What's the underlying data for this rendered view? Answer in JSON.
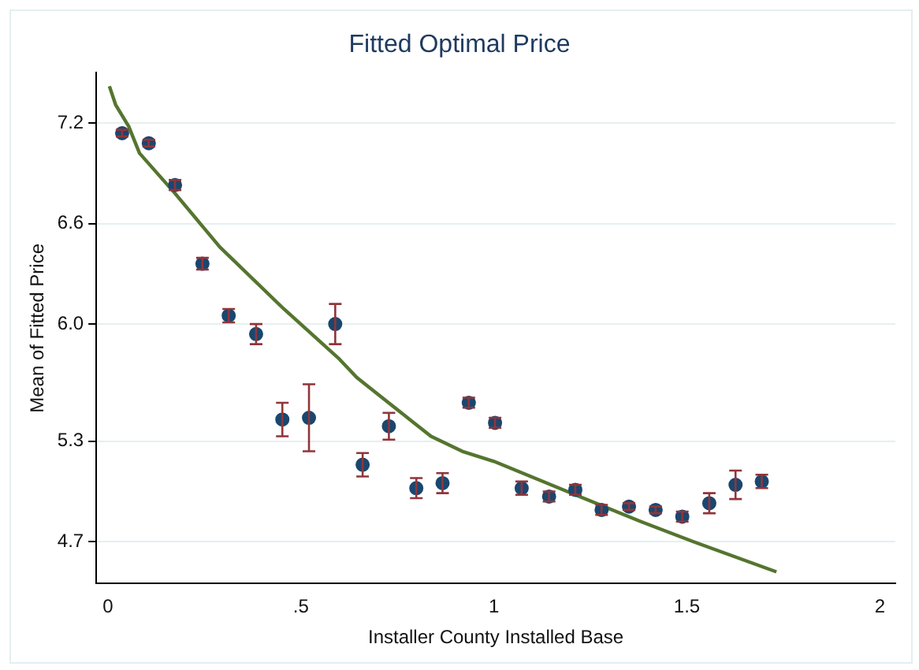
{
  "chart_data": {
    "type": "scatter",
    "title": "Fitted Optimal Price",
    "xlabel": "Installer County Installed Base",
    "ylabel": "Mean of Fitted Price",
    "xlim": [
      -0.03,
      2.04
    ],
    "xticks": [
      0,
      {
        "value": 0.5,
        "label": ".5"
      },
      1,
      {
        "value": 1.5,
        "label": "1.5"
      },
      2
    ],
    "ylim": [
      4.45,
      7.5
    ],
    "yticks": [
      {
        "value": 4.7,
        "label": "4.7"
      },
      {
        "value": 5.3,
        "label": "5.3"
      },
      {
        "value": 6.0,
        "label": "6.0"
      },
      {
        "value": 6.6,
        "label": "6.6"
      },
      {
        "value": 7.2,
        "label": "7.2"
      }
    ],
    "grid": "y",
    "legend": false,
    "marker": "circle",
    "series": [
      {
        "type": "scatter",
        "color": "#1a476f",
        "x": [
          0.037,
          0.106,
          0.174,
          0.245,
          0.313,
          0.384,
          0.452,
          0.521,
          0.589,
          0.66,
          0.728,
          0.799,
          0.867,
          0.935,
          1.003,
          1.072,
          1.143,
          1.211,
          1.279,
          1.35,
          1.419,
          1.488,
          1.558,
          1.626,
          1.694
        ],
        "values": [
          7.14,
          7.08,
          6.83,
          6.36,
          6.05,
          5.94,
          5.43,
          5.44,
          6.0,
          5.16,
          5.39,
          5.02,
          5.05,
          5.53,
          5.41,
          5.02,
          4.97,
          5.01,
          4.89,
          4.91,
          4.89,
          4.85,
          4.93,
          5.04,
          5.06
        ],
        "errors": [
          0.02,
          0.02,
          0.03,
          0.035,
          0.04,
          0.06,
          0.1,
          0.2,
          0.12,
          0.07,
          0.08,
          0.06,
          0.06,
          0.03,
          0.03,
          0.04,
          0.03,
          0.03,
          0.03,
          0.02,
          0.02,
          0.03,
          0.06,
          0.085,
          0.04
        ]
      },
      {
        "type": "line",
        "color": "#55752f",
        "marker": "none",
        "x": [
          0.004,
          0.02,
          0.054,
          0.082,
          0.174,
          0.29,
          0.456,
          0.6,
          0.645,
          0.782,
          0.837,
          0.918,
          1.0,
          1.211,
          1.381,
          1.517,
          1.732
        ],
        "values": [
          7.42,
          7.31,
          7.18,
          7.02,
          6.78,
          6.46,
          6.09,
          5.79,
          5.68,
          5.43,
          5.33,
          5.24,
          5.18,
          4.98,
          4.82,
          4.7,
          4.52
        ]
      }
    ]
  }
}
